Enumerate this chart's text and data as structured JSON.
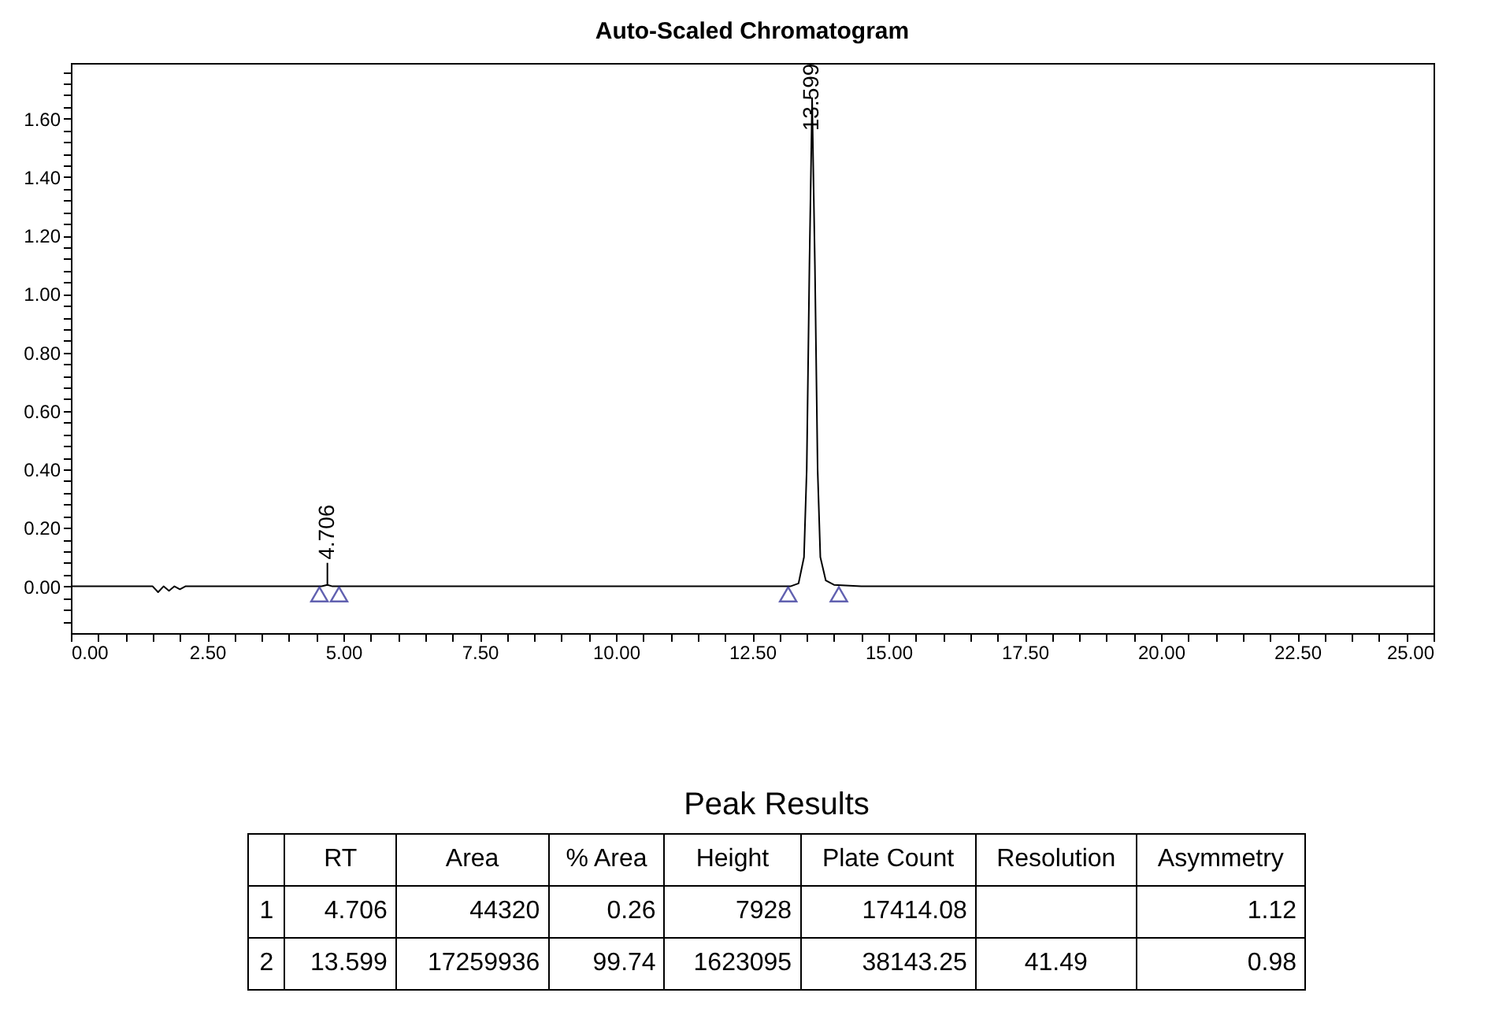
{
  "chart_data": {
    "type": "line",
    "title": "Auto-Scaled Chromatogram",
    "xlim": [
      0,
      25
    ],
    "ylim": [
      -0.16,
      1.79
    ],
    "xticks": [
      {
        "value": 0,
        "label": "0.00"
      },
      {
        "value": 0.5,
        "label": null
      },
      {
        "value": 1,
        "label": null
      },
      {
        "value": 1.5,
        "label": null
      },
      {
        "value": 2,
        "label": null
      },
      {
        "value": 2.5,
        "label": "2.50"
      },
      {
        "value": 3,
        "label": null
      },
      {
        "value": 3.5,
        "label": null
      },
      {
        "value": 4,
        "label": null
      },
      {
        "value": 4.5,
        "label": null
      },
      {
        "value": 5,
        "label": "5.00"
      },
      {
        "value": 5.5,
        "label": null
      },
      {
        "value": 6,
        "label": null
      },
      {
        "value": 6.5,
        "label": null
      },
      {
        "value": 7,
        "label": null
      },
      {
        "value": 7.5,
        "label": "7.50"
      },
      {
        "value": 8,
        "label": null
      },
      {
        "value": 8.5,
        "label": null
      },
      {
        "value": 9,
        "label": null
      },
      {
        "value": 9.5,
        "label": null
      },
      {
        "value": 10,
        "label": "10.00"
      },
      {
        "value": 10.5,
        "label": null
      },
      {
        "value": 11,
        "label": null
      },
      {
        "value": 11.5,
        "label": null
      },
      {
        "value": 12,
        "label": null
      },
      {
        "value": 12.5,
        "label": "12.50"
      },
      {
        "value": 13,
        "label": null
      },
      {
        "value": 13.5,
        "label": null
      },
      {
        "value": 14,
        "label": null
      },
      {
        "value": 14.5,
        "label": null
      },
      {
        "value": 15,
        "label": "15.00"
      },
      {
        "value": 15.5,
        "label": null
      },
      {
        "value": 16,
        "label": null
      },
      {
        "value": 16.5,
        "label": null
      },
      {
        "value": 17,
        "label": null
      },
      {
        "value": 17.5,
        "label": "17.50"
      },
      {
        "value": 18,
        "label": null
      },
      {
        "value": 18.5,
        "label": null
      },
      {
        "value": 19,
        "label": null
      },
      {
        "value": 19.5,
        "label": null
      },
      {
        "value": 20,
        "label": "20.00"
      },
      {
        "value": 20.5,
        "label": null
      },
      {
        "value": 21,
        "label": null
      },
      {
        "value": 21.5,
        "label": null
      },
      {
        "value": 22,
        "label": null
      },
      {
        "value": 22.5,
        "label": "22.50"
      },
      {
        "value": 23,
        "label": null
      },
      {
        "value": 23.5,
        "label": null
      },
      {
        "value": 24,
        "label": null
      },
      {
        "value": 24.5,
        "label": null
      },
      {
        "value": 25,
        "label": "25.00"
      }
    ],
    "yticks": [
      {
        "value": -0.12,
        "label": null
      },
      {
        "value": -0.08,
        "label": null
      },
      {
        "value": -0.04,
        "label": null
      },
      {
        "value": 0,
        "label": "0.00"
      },
      {
        "value": 0.04,
        "label": null
      },
      {
        "value": 0.08,
        "label": null
      },
      {
        "value": 0.12,
        "label": null
      },
      {
        "value": 0.16,
        "label": null
      },
      {
        "value": 0.2,
        "label": "0.20"
      },
      {
        "value": 0.24,
        "label": null
      },
      {
        "value": 0.28,
        "label": null
      },
      {
        "value": 0.32,
        "label": null
      },
      {
        "value": 0.36,
        "label": null
      },
      {
        "value": 0.4,
        "label": "0.40"
      },
      {
        "value": 0.44,
        "label": null
      },
      {
        "value": 0.48,
        "label": null
      },
      {
        "value": 0.52,
        "label": null
      },
      {
        "value": 0.56,
        "label": null
      },
      {
        "value": 0.6,
        "label": "0.60"
      },
      {
        "value": 0.64,
        "label": null
      },
      {
        "value": 0.68,
        "label": null
      },
      {
        "value": 0.72,
        "label": null
      },
      {
        "value": 0.76,
        "label": null
      },
      {
        "value": 0.8,
        "label": "0.80"
      },
      {
        "value": 0.84,
        "label": null
      },
      {
        "value": 0.88,
        "label": null
      },
      {
        "value": 0.92,
        "label": null
      },
      {
        "value": 0.96,
        "label": null
      },
      {
        "value": 1.0,
        "label": "1.00"
      },
      {
        "value": 1.04,
        "label": null
      },
      {
        "value": 1.08,
        "label": null
      },
      {
        "value": 1.12,
        "label": null
      },
      {
        "value": 1.16,
        "label": null
      },
      {
        "value": 1.2,
        "label": "1.20"
      },
      {
        "value": 1.24,
        "label": null
      },
      {
        "value": 1.28,
        "label": null
      },
      {
        "value": 1.32,
        "label": null
      },
      {
        "value": 1.36,
        "label": null
      },
      {
        "value": 1.4,
        "label": "1.40"
      },
      {
        "value": 1.44,
        "label": null
      },
      {
        "value": 1.48,
        "label": null
      },
      {
        "value": 1.52,
        "label": null
      },
      {
        "value": 1.56,
        "label": null
      },
      {
        "value": 1.6,
        "label": "1.60"
      },
      {
        "value": 1.64,
        "label": null
      },
      {
        "value": 1.68,
        "label": null
      },
      {
        "value": 1.72,
        "label": null
      },
      {
        "value": 1.76,
        "label": null
      }
    ],
    "series": [
      {
        "color": "#000000",
        "x": [
          0,
          1.5,
          1.6,
          1.7,
          1.8,
          1.9,
          2.0,
          2.1,
          4.6,
          4.706,
          4.8,
          13.2,
          13.35,
          13.45,
          13.5,
          13.55,
          13.599,
          13.65,
          13.7,
          13.75,
          13.85,
          14.0,
          14.5,
          25
        ],
        "values": [
          0,
          0,
          -0.02,
          0,
          -0.015,
          0,
          -0.01,
          0,
          0,
          0.005,
          0,
          0,
          0.01,
          0.1,
          0.4,
          1.1,
          1.67,
          1.1,
          0.4,
          0.1,
          0.02,
          0.005,
          0,
          0
        ]
      },
      {
        "type": "scatter",
        "marker": "triangle",
        "color": "#1f1f8f",
        "x": [
          4.56,
          4.92,
          13.16,
          14.09
        ],
        "values": [
          -0.027,
          -0.027,
          -0.027,
          -0.027
        ]
      }
    ],
    "annotations": [
      {
        "text": "4.706",
        "x": 4.706,
        "y": 0.005
      },
      {
        "text": "13.599",
        "x": 13.599,
        "y": 1.67
      },
      "Peak Results",
      null,
      "RT",
      "Area",
      "% Area",
      "Height",
      "Plate Count",
      "Resolution",
      "Asymmetry",
      "1",
      "4.706",
      "44320",
      "0.26",
      "7928",
      "17414.08",
      null,
      "1.12",
      "2",
      "13.599",
      "17259936",
      "99.74",
      "1623095",
      "38143.25",
      "41.49",
      "0.98"
    ]
  }
}
